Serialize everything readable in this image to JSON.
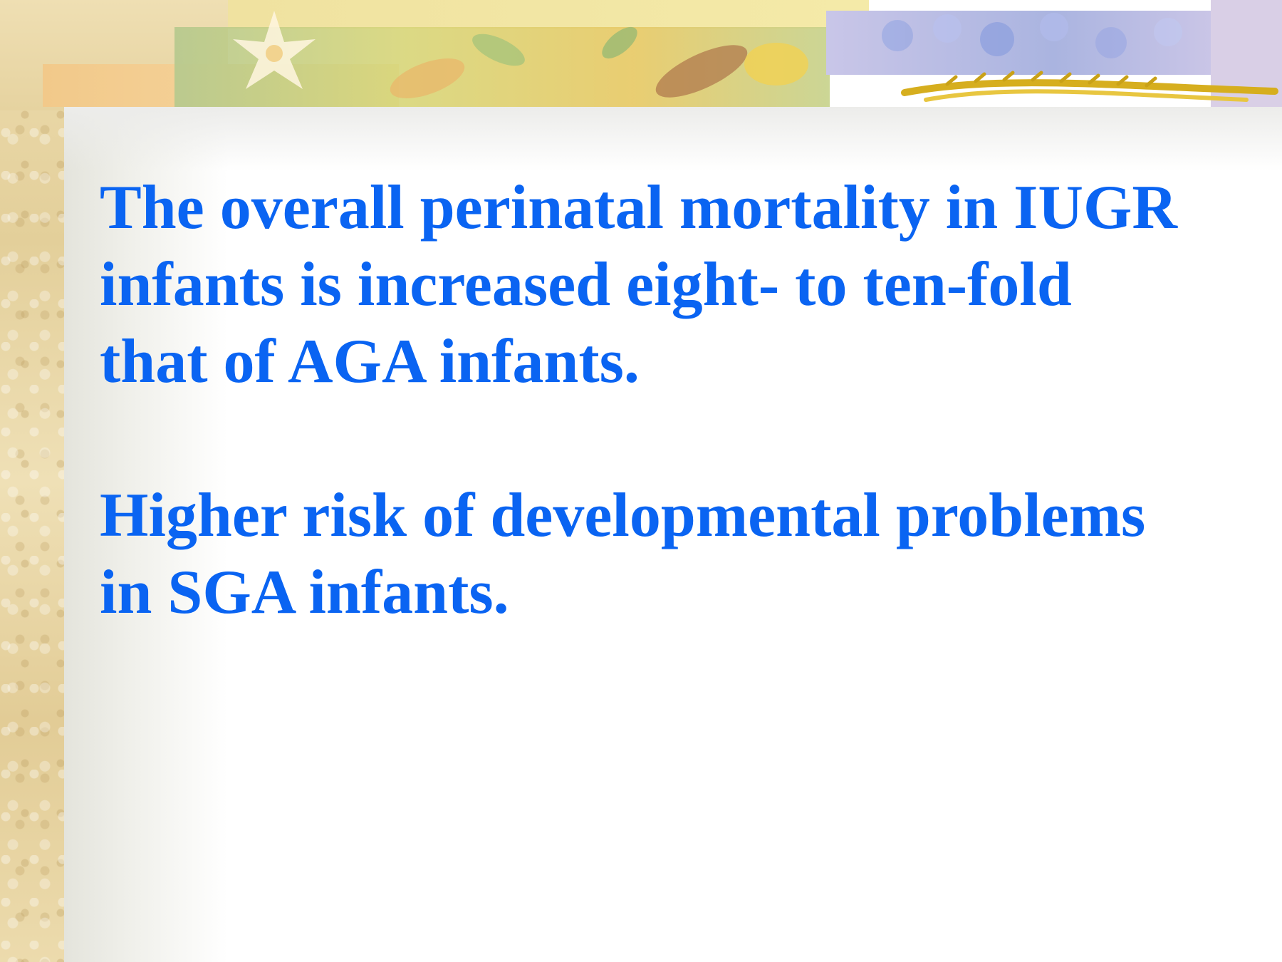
{
  "slide": {
    "paragraphs": [
      {
        "text": "The overall perinatal mortality in IUGR\ninfants is increased eight- to ten-fold\nthat of AGA infants."
      },
      {
        "text": "Higher risk of developmental problems\nin SGA infants."
      }
    ]
  },
  "colors": {
    "body_text": "#0a64f2",
    "background": "#ffffff",
    "parchment": "#ead9ab"
  },
  "decoration": {
    "banner_icons": [
      "flower-icon",
      "leaf-icon",
      "grain-icon"
    ]
  }
}
